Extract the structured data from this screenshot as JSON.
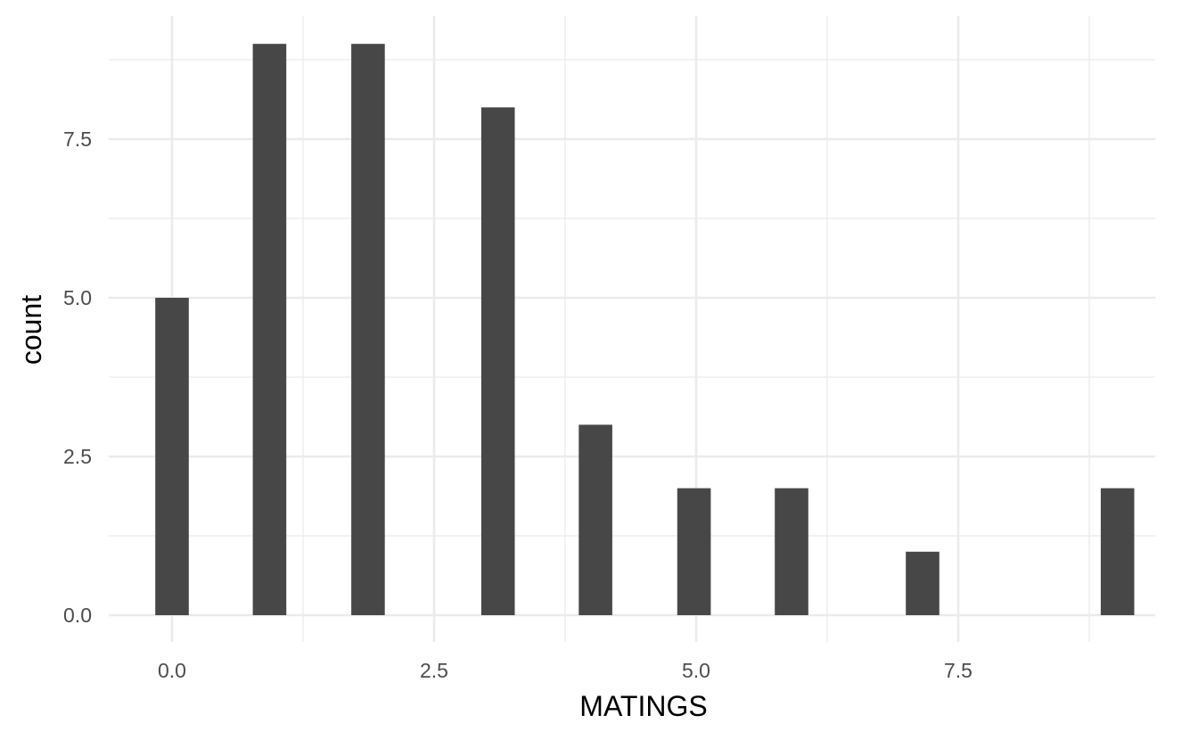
{
  "chart_data": {
    "type": "bar",
    "title": "",
    "xlabel": "MATINGS",
    "ylabel": "count",
    "xlim": [
      -0.6,
      9.6
    ],
    "ylim": [
      0,
      9.45
    ],
    "bar_width": 0.32,
    "x_ticks": [
      0,
      2.5,
      5,
      7.5
    ],
    "x_tick_labels": [
      "0.0",
      "2.5",
      "5.0",
      "7.5"
    ],
    "y_ticks": [
      0,
      2.5,
      5,
      7.5
    ],
    "y_tick_labels": [
      "0.0",
      "2.5",
      "5.0",
      "7.5"
    ],
    "grid": true,
    "legend": "none",
    "bar_color": "#474747",
    "grid_color": "#ebebeb",
    "x": [
      0,
      0.93,
      1.87,
      3.11,
      4.04,
      4.98,
      5.91,
      7.16,
      9.02
    ],
    "values": [
      5,
      9,
      9,
      8,
      3,
      2,
      2,
      1,
      2
    ]
  }
}
